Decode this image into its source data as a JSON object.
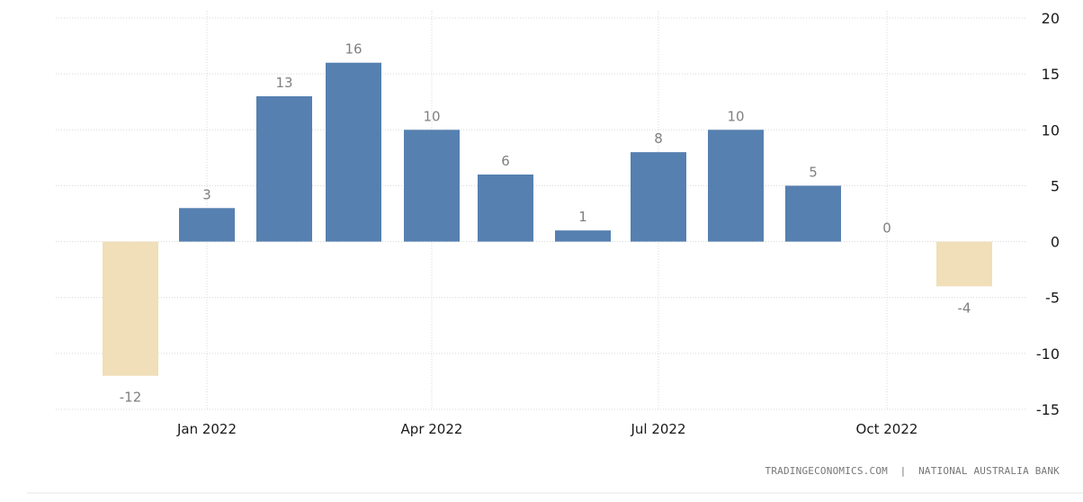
{
  "chart_data": {
    "type": "bar",
    "categories": [
      "Dec 2021",
      "Jan 2022",
      "Feb 2022",
      "Mar 2022",
      "Apr 2022",
      "May 2022",
      "Jun 2022",
      "Jul 2022",
      "Aug 2022",
      "Sep 2022",
      "Oct 2022",
      "Nov 2022"
    ],
    "values": [
      -12,
      3,
      13,
      16,
      10,
      6,
      1,
      8,
      10,
      5,
      0,
      -4
    ],
    "data_labels": [
      "-12",
      "3",
      "13",
      "16",
      "10",
      "6",
      "1",
      "8",
      "10",
      "5",
      "0",
      "-4"
    ],
    "x_tick_labels": [
      "Jan 2022",
      "Apr 2022",
      "Jul 2022",
      "Oct 2022"
    ],
    "y_ticks": [
      20,
      15,
      10,
      5,
      0,
      -5,
      -10,
      -15
    ],
    "ylim": [
      -15,
      20
    ],
    "y_axis_position": "right",
    "grid": true,
    "colors": {
      "positive": "#5680b0",
      "negative": "#f0dfb8"
    },
    "title": "",
    "xlabel": "",
    "ylabel": ""
  },
  "credit": "TRADINGECONOMICS.COM  |  NATIONAL AUSTRALIA BANK"
}
